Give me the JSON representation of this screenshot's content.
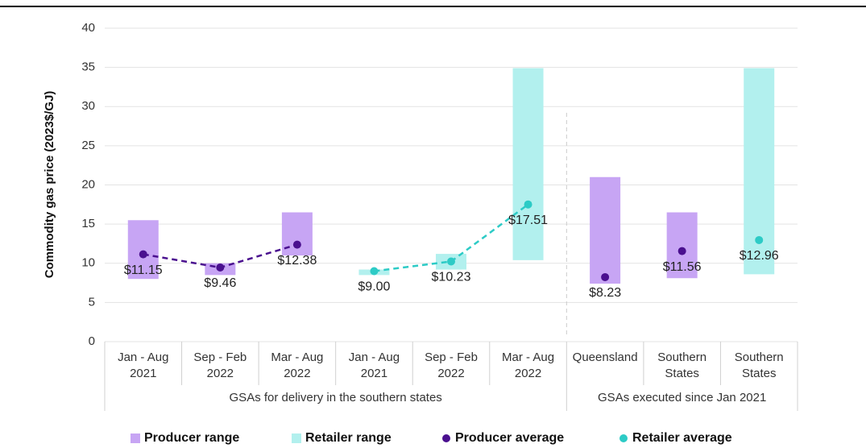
{
  "chart_data": {
    "type": "range_dot",
    "y_label": "Commodity gas price (2023$/GJ)",
    "ylim": [
      0,
      40
    ],
    "yticks": [
      0,
      5,
      10,
      15,
      20,
      25,
      30,
      35,
      40
    ],
    "grid": true,
    "categories": [
      [
        "Jan - Aug",
        "2021"
      ],
      [
        "Sep - Feb",
        "2022"
      ],
      [
        "Mar - Aug",
        "2022"
      ],
      [
        "Jan - Aug",
        "2021"
      ],
      [
        "Sep - Feb",
        "2022"
      ],
      [
        "Mar - Aug",
        "2022"
      ],
      [
        "Queensland"
      ],
      [
        "Southern",
        "States"
      ],
      [
        "Southern",
        "States"
      ]
    ],
    "groups": [
      {
        "label": "GSAs for delivery in the southern states",
        "span": 6
      },
      {
        "label": "GSAs executed since Jan 2021",
        "span": 3
      }
    ],
    "connect_groups": [
      0
    ],
    "legend_position": "bottom",
    "series": [
      {
        "name": "Producer range",
        "kind": "range",
        "color": "#c7a5f4",
        "low": [
          8.0,
          8.5,
          11.0,
          null,
          null,
          null,
          7.4,
          8.1,
          null
        ],
        "high": [
          15.5,
          10.0,
          16.5,
          null,
          null,
          null,
          21.0,
          16.5,
          null
        ]
      },
      {
        "name": "Retailer range",
        "kind": "range",
        "color": "#b2f0ee",
        "low": [
          null,
          null,
          null,
          8.5,
          9.2,
          10.4,
          null,
          null,
          8.6
        ],
        "high": [
          null,
          null,
          null,
          9.2,
          11.2,
          34.9,
          null,
          null,
          34.9
        ]
      },
      {
        "name": "Producer average",
        "kind": "point",
        "color": "#4a108f",
        "values": [
          11.15,
          9.46,
          12.38,
          null,
          null,
          null,
          8.23,
          11.56,
          null
        ],
        "value_labels": [
          "$11.15",
          "$9.46",
          "$12.38",
          null,
          null,
          null,
          "$8.23",
          "$11.56",
          null
        ]
      },
      {
        "name": "Retailer average",
        "kind": "point",
        "color": "#2dcbc6",
        "values": [
          null,
          null,
          null,
          9.0,
          10.23,
          17.51,
          null,
          null,
          12.96
        ],
        "value_labels": [
          null,
          null,
          null,
          "$9.00",
          "$10.23",
          "$17.51",
          null,
          null,
          "$12.96"
        ]
      }
    ]
  }
}
